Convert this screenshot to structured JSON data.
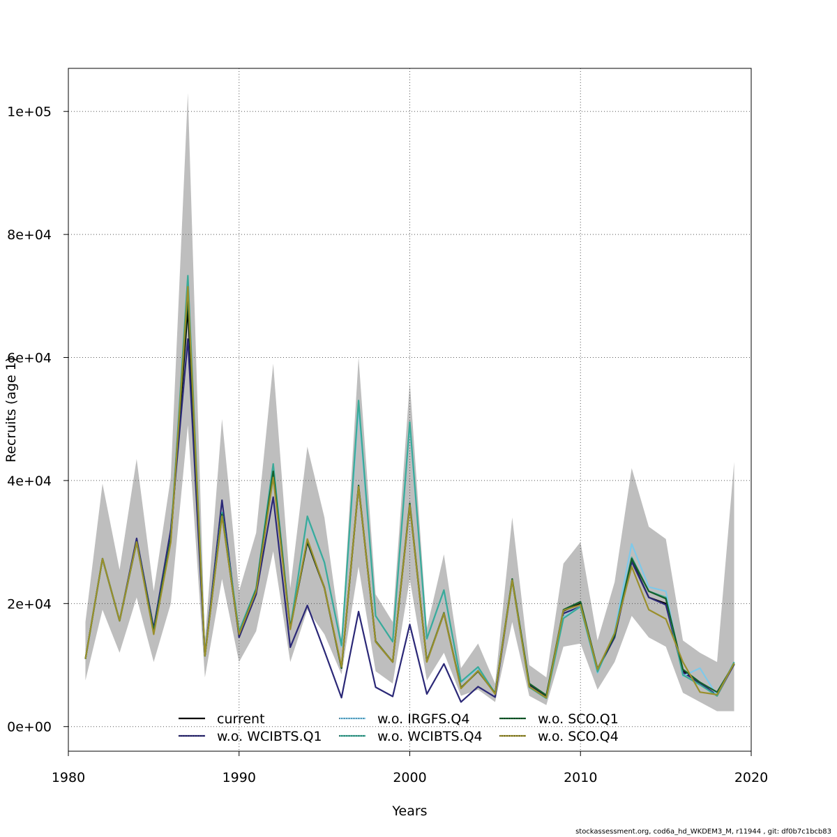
{
  "chart_data": {
    "type": "line",
    "title": "",
    "xlabel": "Years",
    "ylabel": "Recruits (age 1)",
    "xlim": [
      1980,
      2020
    ],
    "ylim": [
      -4000,
      107000
    ],
    "x_ticks": [
      1980,
      1990,
      2000,
      2010,
      2020
    ],
    "y_ticks": [
      0,
      20000,
      40000,
      60000,
      80000,
      100000
    ],
    "y_tick_labels": [
      "0e+00",
      "2e+04",
      "4e+04",
      "6e+04",
      "8e+04",
      "1e+05"
    ],
    "grid": true,
    "legend_position": "bottom",
    "x": [
      1981,
      1982,
      1983,
      1984,
      1985,
      1986,
      1987,
      1988,
      1989,
      1990,
      1991,
      1992,
      1993,
      1994,
      1995,
      1996,
      1997,
      1998,
      1999,
      2000,
      2001,
      2002,
      2003,
      2004,
      2005,
      2006,
      2007,
      2008,
      2009,
      2010,
      2011,
      2012,
      2013,
      2014,
      2015,
      2016,
      2017,
      2018,
      2019
    ],
    "band": {
      "lower": [
        7500,
        19000,
        12000,
        21000,
        10500,
        20000,
        49000,
        8000,
        24000,
        10500,
        15500,
        28500,
        10500,
        19000,
        15000,
        8500,
        26000,
        9000,
        7000,
        24000,
        7500,
        12000,
        5000,
        6000,
        4000,
        17000,
        5000,
        3500,
        13000,
        13500,
        6000,
        10500,
        18000,
        14500,
        13000,
        5500,
        4000,
        2500,
        2500
      ],
      "upper": [
        17000,
        39500,
        25500,
        43500,
        22000,
        40500,
        103000,
        14000,
        50000,
        22000,
        31500,
        59000,
        22500,
        45500,
        34000,
        14000,
        60000,
        21500,
        17000,
        56000,
        16000,
        28000,
        9500,
        13500,
        7000,
        34000,
        10000,
        8000,
        26500,
        30000,
        14000,
        23500,
        42000,
        32500,
        30500,
        14000,
        12000,
        10500,
        43000
      ]
    },
    "series": [
      {
        "name": "current",
        "color": "#000000",
        "values": [
          11000,
          27300,
          17200,
          30000,
          15500,
          30500,
          68000,
          11500,
          34500,
          14800,
          21900,
          41000,
          16000,
          30000,
          22500,
          9500,
          39000,
          13800,
          10500,
          36000,
          10600,
          18400,
          6300,
          9000,
          5400,
          23800,
          6700,
          4800,
          18800,
          20000,
          9200,
          14700,
          27000,
          21000,
          20000,
          9000,
          7000,
          5000,
          10200
        ]
      },
      {
        "name": "w.o. WCIBTS.Q1",
        "color": "#2b2877",
        "values": [
          11000,
          27300,
          17200,
          30600,
          16000,
          32000,
          63000,
          11500,
          36800,
          14500,
          21500,
          37300,
          12900,
          19700,
          12300,
          4700,
          18700,
          6400,
          4900,
          16600,
          5300,
          10200,
          4000,
          6500,
          4800,
          23800,
          6600,
          4700,
          18400,
          19500,
          9200,
          14500,
          26800,
          21000,
          19800,
          8800,
          7100,
          5100,
          10100
        ]
      },
      {
        "name": "w.o. IRGFS.Q4",
        "color": "#7ec9ea",
        "values": [
          11000,
          27300,
          17200,
          30000,
          15500,
          30500,
          73000,
          11500,
          34800,
          15500,
          22500,
          42500,
          16000,
          34000,
          26600,
          13000,
          52000,
          18000,
          13800,
          49000,
          14200,
          22100,
          7200,
          9500,
          5400,
          23800,
          6500,
          4700,
          17800,
          19500,
          8700,
          15500,
          29700,
          22700,
          22000,
          8200,
          9500,
          5000,
          10400
        ]
      },
      {
        "name": "w.o. WCIBTS.Q4",
        "color": "#3aaa98",
        "values": [
          11000,
          27300,
          17200,
          30000,
          15500,
          30500,
          73300,
          11500,
          34800,
          15500,
          22500,
          42700,
          16000,
          34200,
          26700,
          13200,
          53000,
          18000,
          13800,
          49500,
          14300,
          22200,
          7300,
          9700,
          5400,
          23800,
          6400,
          4600,
          17600,
          19500,
          8900,
          15200,
          27500,
          22000,
          21000,
          8400,
          6800,
          5000,
          10500
        ]
      },
      {
        "name": "w.o. SCO.Q1",
        "color": "#13602d",
        "values": [
          11000,
          27300,
          17200,
          30000,
          15500,
          30500,
          70000,
          11500,
          34500,
          15000,
          22200,
          41500,
          16000,
          30200,
          22600,
          9500,
          39200,
          13900,
          10500,
          36300,
          10600,
          18500,
          6300,
          9000,
          5400,
          24000,
          7000,
          5100,
          19000,
          20300,
          9400,
          14800,
          27300,
          22000,
          20800,
          9300,
          7200,
          5600,
          10200
        ]
      },
      {
        "name": "w.o. SCO.Q4",
        "color": "#9a8f2b",
        "values": [
          11000,
          27300,
          17200,
          30000,
          15000,
          30000,
          71500,
          11500,
          34200,
          15000,
          22000,
          40500,
          15800,
          30500,
          22500,
          9700,
          39000,
          13800,
          10500,
          36000,
          10500,
          18400,
          6200,
          9100,
          5300,
          23800,
          6500,
          4700,
          18900,
          19800,
          9300,
          15200,
          26000,
          19000,
          17500,
          10500,
          5600,
          5200,
          10300
        ]
      }
    ]
  },
  "footer": "stockassessment.org, cod6a_hd_WKDEM3_M, r11944 , git: df0b7c1bcb83"
}
